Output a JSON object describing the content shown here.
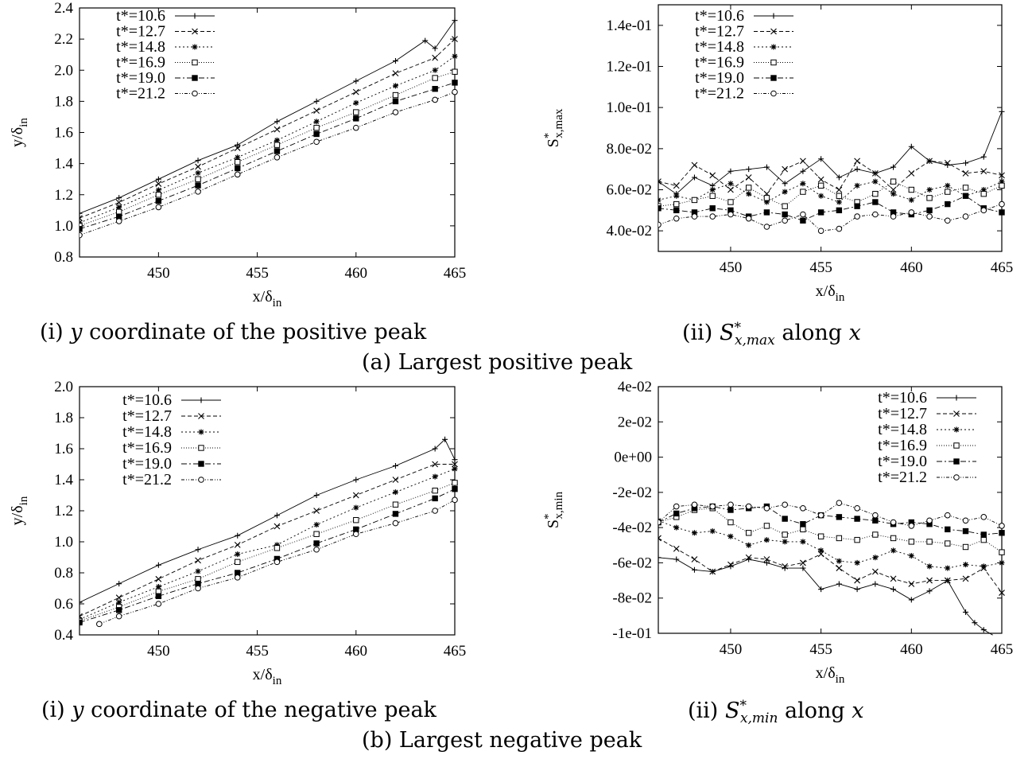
{
  "captions": {
    "a_i": {
      "prefix": "(i)",
      "var": "y",
      "text": "coordinate of the positive peak"
    },
    "a_ii": {
      "prefix": "(ii)",
      "sym": "S",
      "sup": "*",
      "sub": "x,max",
      "suffix": "along",
      "var": "x"
    },
    "a": "(a) Largest positive peak",
    "b_i": {
      "prefix": "(i)",
      "var": "y",
      "text": "coordinate of the negative peak"
    },
    "b_ii": {
      "prefix": "(ii)",
      "sym": "S",
      "sup": "*",
      "sub": "x,min",
      "suffix": "along",
      "var": "x"
    },
    "b": "(b) Largest negative peak"
  },
  "chart_data": [
    {
      "id": "a-i",
      "type": "line",
      "xlabel": "x/δ",
      "xlabel_sub": "in",
      "ylabel": "y/δ",
      "ylabel_sub": "in",
      "xlim": [
        446,
        465
      ],
      "ylim": [
        0.8,
        2.4
      ],
      "xticks": [
        450,
        455,
        460,
        465
      ],
      "xtick_labels": [
        "450",
        "455",
        "460",
        "465"
      ],
      "yticks": [
        0.8,
        1.0,
        1.2,
        1.4,
        1.6,
        1.8,
        2.0,
        2.2,
        2.4
      ],
      "ytick_labels": [
        "0.8",
        "1.0",
        "1.2",
        "1.4",
        "1.6",
        "1.8",
        "2.0",
        "2.2",
        "2.4"
      ],
      "legend_position": "top-left",
      "series": [
        {
          "name": "t*=10.6",
          "x": [
            446,
            448,
            450,
            452,
            454,
            456,
            458,
            460,
            462,
            463.5,
            464,
            465
          ],
          "y": [
            1.08,
            1.18,
            1.3,
            1.42,
            1.52,
            1.67,
            1.8,
            1.93,
            2.06,
            2.19,
            2.14,
            2.32
          ]
        },
        {
          "name": "t*=12.7",
          "x": [
            446,
            448,
            450,
            452,
            454,
            456,
            458,
            460,
            462,
            464,
            465
          ],
          "y": [
            1.05,
            1.15,
            1.27,
            1.38,
            1.5,
            1.62,
            1.74,
            1.86,
            1.98,
            2.08,
            2.2
          ]
        },
        {
          "name": "t*=14.8",
          "x": [
            446,
            448,
            450,
            452,
            454,
            456,
            458,
            460,
            462,
            464,
            465
          ],
          "y": [
            1.02,
            1.12,
            1.23,
            1.34,
            1.44,
            1.55,
            1.67,
            1.79,
            1.9,
            2.0,
            2.09
          ]
        },
        {
          "name": "t*=16.9",
          "x": [
            446,
            448,
            450,
            452,
            454,
            456,
            458,
            460,
            462,
            464,
            465
          ],
          "y": [
            1.0,
            1.09,
            1.2,
            1.3,
            1.41,
            1.52,
            1.63,
            1.73,
            1.84,
            1.95,
            1.99
          ]
        },
        {
          "name": "t*=19.0",
          "x": [
            446,
            448,
            450,
            452,
            454,
            456,
            458,
            460,
            462,
            464,
            465
          ],
          "y": [
            0.98,
            1.06,
            1.16,
            1.26,
            1.37,
            1.48,
            1.59,
            1.69,
            1.8,
            1.88,
            1.92
          ]
        },
        {
          "name": "t*=21.2",
          "x": [
            446,
            448,
            450,
            452,
            454,
            456,
            458,
            460,
            462,
            464,
            465
          ],
          "y": [
            0.94,
            1.03,
            1.12,
            1.22,
            1.33,
            1.44,
            1.54,
            1.63,
            1.73,
            1.81,
            1.86
          ]
        }
      ]
    },
    {
      "id": "a-ii",
      "type": "line",
      "xlabel": "x/δ",
      "xlabel_sub": "in",
      "ylabel": "S",
      "ylabel_sup": "*",
      "ylabel_sub": "x,max",
      "xlim": [
        446,
        465
      ],
      "ylim": [
        0.03,
        0.15
      ],
      "xticks": [
        450,
        455,
        460,
        465
      ],
      "xtick_labels": [
        "450",
        "455",
        "460",
        "465"
      ],
      "yticks": [
        0.04,
        0.06,
        0.08,
        0.1,
        0.12,
        0.14
      ],
      "ytick_labels": [
        "4.0e-02",
        "6.0e-02",
        "8.0e-02",
        "1.0e-01",
        "1.2e-01",
        "1.4e-01"
      ],
      "legend_position": "top-left",
      "series": [
        {
          "name": "t*=10.6",
          "x": [
            446,
            447,
            448,
            449,
            450,
            451,
            452,
            453,
            454,
            455,
            456,
            457,
            458,
            459,
            460,
            461,
            462,
            463,
            464,
            465
          ],
          "y": [
            0.064,
            0.058,
            0.066,
            0.062,
            0.069,
            0.07,
            0.071,
            0.063,
            0.069,
            0.075,
            0.066,
            0.07,
            0.068,
            0.071,
            0.081,
            0.074,
            0.072,
            0.073,
            0.076,
            0.098
          ]
        },
        {
          "name": "t*=12.7",
          "x": [
            446,
            447,
            448,
            449,
            450,
            451,
            452,
            453,
            454,
            455,
            456,
            457,
            458,
            459,
            460,
            461,
            462,
            463,
            464,
            465
          ],
          "y": [
            0.064,
            0.062,
            0.072,
            0.067,
            0.06,
            0.066,
            0.058,
            0.07,
            0.074,
            0.065,
            0.06,
            0.074,
            0.068,
            0.06,
            0.068,
            0.074,
            0.073,
            0.068,
            0.069,
            0.067
          ]
        },
        {
          "name": "t*=14.8",
          "x": [
            446,
            447,
            448,
            449,
            450,
            451,
            452,
            453,
            454,
            455,
            456,
            457,
            458,
            459,
            460,
            461,
            462,
            463,
            464,
            465
          ],
          "y": [
            0.055,
            0.057,
            0.055,
            0.06,
            0.063,
            0.058,
            0.054,
            0.059,
            0.063,
            0.057,
            0.054,
            0.062,
            0.064,
            0.058,
            0.055,
            0.06,
            0.062,
            0.057,
            0.06,
            0.064
          ]
        },
        {
          "name": "t*=16.9",
          "x": [
            446,
            447,
            448,
            449,
            450,
            451,
            452,
            453,
            454,
            455,
            456,
            457,
            458,
            459,
            460,
            461,
            462,
            463,
            464,
            465
          ],
          "y": [
            0.052,
            0.053,
            0.055,
            0.057,
            0.054,
            0.061,
            0.056,
            0.052,
            0.059,
            0.062,
            0.057,
            0.054,
            0.058,
            0.064,
            0.06,
            0.056,
            0.059,
            0.061,
            0.058,
            0.062
          ]
        },
        {
          "name": "t*=19.0",
          "x": [
            446,
            447,
            448,
            449,
            450,
            451,
            452,
            453,
            454,
            455,
            456,
            457,
            458,
            459,
            460,
            461,
            462,
            463,
            464,
            465
          ],
          "y": [
            0.051,
            0.05,
            0.049,
            0.051,
            0.05,
            0.047,
            0.049,
            0.048,
            0.045,
            0.049,
            0.05,
            0.052,
            0.054,
            0.049,
            0.048,
            0.05,
            0.053,
            0.057,
            0.051,
            0.049
          ]
        },
        {
          "name": "t*=21.2",
          "x": [
            446,
            447,
            448,
            449,
            450,
            451,
            452,
            453,
            454,
            455,
            456,
            457,
            458,
            459,
            460,
            461,
            462,
            463,
            464,
            465
          ],
          "y": [
            0.043,
            0.046,
            0.047,
            0.047,
            0.048,
            0.046,
            0.042,
            0.045,
            0.048,
            0.04,
            0.041,
            0.047,
            0.048,
            0.047,
            0.049,
            0.047,
            0.045,
            0.047,
            0.05,
            0.053
          ]
        }
      ]
    },
    {
      "id": "b-i",
      "type": "line",
      "xlabel": "x/δ",
      "xlabel_sub": "in",
      "ylabel": "y/δ",
      "ylabel_sub": "in",
      "xlim": [
        446,
        465
      ],
      "ylim": [
        0.4,
        2.0
      ],
      "xticks": [
        450,
        455,
        460,
        465
      ],
      "xtick_labels": [
        "450",
        "455",
        "460",
        "465"
      ],
      "yticks": [
        0.4,
        0.6,
        0.8,
        1.0,
        1.2,
        1.4,
        1.6,
        1.8,
        2.0
      ],
      "ytick_labels": [
        "0.4",
        "0.6",
        "0.8",
        "1.0",
        "1.2",
        "1.4",
        "1.6",
        "1.8",
        "2.0"
      ],
      "legend_position": "top-left",
      "series": [
        {
          "name": "t*=10.6",
          "x": [
            446,
            448,
            450,
            452,
            454,
            456,
            458,
            460,
            462,
            464,
            464.5,
            465
          ],
          "y": [
            0.61,
            0.73,
            0.85,
            0.95,
            1.04,
            1.17,
            1.3,
            1.4,
            1.49,
            1.6,
            1.66,
            1.53
          ]
        },
        {
          "name": "t*=12.7",
          "x": [
            446,
            448,
            450,
            452,
            454,
            456,
            458,
            460,
            462,
            464,
            465
          ],
          "y": [
            0.52,
            0.64,
            0.76,
            0.88,
            0.98,
            1.1,
            1.2,
            1.3,
            1.4,
            1.5,
            1.5
          ]
        },
        {
          "name": "t*=14.8",
          "x": [
            446,
            448,
            450,
            452,
            454,
            456,
            458,
            460,
            462,
            464,
            465
          ],
          "y": [
            0.5,
            0.61,
            0.71,
            0.81,
            0.92,
            0.98,
            1.11,
            1.22,
            1.32,
            1.42,
            1.47
          ]
        },
        {
          "name": "t*=16.9",
          "x": [
            446,
            448,
            450,
            452,
            454,
            456,
            458,
            460,
            462,
            464,
            465
          ],
          "y": [
            0.49,
            0.58,
            0.68,
            0.76,
            0.87,
            0.96,
            1.05,
            1.14,
            1.24,
            1.33,
            1.38
          ]
        },
        {
          "name": "t*=19.0",
          "x": [
            446,
            448,
            450,
            452,
            454,
            456,
            458,
            460,
            462,
            464,
            465
          ],
          "y": [
            0.48,
            0.56,
            0.65,
            0.73,
            0.8,
            0.89,
            0.99,
            1.08,
            1.18,
            1.28,
            1.34
          ]
        },
        {
          "name": "t*=21.2",
          "x": [
            447,
            448,
            450,
            452,
            454,
            456,
            458,
            460,
            462,
            464,
            465
          ],
          "y": [
            0.47,
            0.52,
            0.6,
            0.7,
            0.77,
            0.87,
            0.95,
            1.05,
            1.12,
            1.2,
            1.27
          ]
        }
      ]
    },
    {
      "id": "b-ii",
      "type": "line",
      "xlabel": "x/δ",
      "xlabel_sub": "in",
      "ylabel": "S",
      "ylabel_sup": "*",
      "ylabel_sub": "x,min",
      "xlim": [
        446,
        465
      ],
      "ylim": [
        -0.1,
        0.04
      ],
      "xticks": [
        450,
        455,
        460,
        465
      ],
      "xtick_labels": [
        "450",
        "455",
        "460",
        "465"
      ],
      "yticks": [
        -0.1,
        -0.08,
        -0.06,
        -0.04,
        -0.02,
        0.0,
        0.02,
        0.04
      ],
      "ytick_labels": [
        "-1e-01",
        "-8e-02",
        "-6e-02",
        "-4e-02",
        "-2e-02",
        "0e+00",
        "2e-02",
        "4e-02"
      ],
      "legend_position": "top-right",
      "series": [
        {
          "name": "t*=10.6",
          "x": [
            446,
            447,
            448,
            449,
            450,
            451,
            452,
            453,
            454,
            455,
            456,
            457,
            458,
            459,
            460,
            461,
            462,
            463,
            463.5,
            464,
            464.5
          ],
          "y": [
            -0.057,
            -0.058,
            -0.064,
            -0.065,
            -0.062,
            -0.058,
            -0.06,
            -0.063,
            -0.063,
            -0.075,
            -0.072,
            -0.075,
            -0.072,
            -0.075,
            -0.081,
            -0.076,
            -0.07,
            -0.088,
            -0.094,
            -0.098,
            -0.101
          ]
        },
        {
          "name": "t*=12.7",
          "x": [
            446,
            447,
            448,
            449,
            450,
            451,
            452,
            453,
            454,
            455,
            456,
            457,
            458,
            459,
            460,
            461,
            462,
            463,
            464,
            465
          ],
          "y": [
            -0.046,
            -0.052,
            -0.058,
            -0.065,
            -0.061,
            -0.057,
            -0.058,
            -0.062,
            -0.06,
            -0.055,
            -0.063,
            -0.07,
            -0.065,
            -0.069,
            -0.072,
            -0.07,
            -0.07,
            -0.069,
            -0.063,
            -0.077
          ]
        },
        {
          "name": "t*=14.8",
          "x": [
            446,
            447,
            448,
            449,
            450,
            451,
            452,
            453,
            454,
            455,
            456,
            457,
            458,
            459,
            460,
            461,
            462,
            463,
            464,
            465
          ],
          "y": [
            -0.036,
            -0.04,
            -0.043,
            -0.042,
            -0.045,
            -0.05,
            -0.047,
            -0.048,
            -0.048,
            -0.053,
            -0.059,
            -0.06,
            -0.057,
            -0.053,
            -0.056,
            -0.062,
            -0.063,
            -0.061,
            -0.062,
            -0.06
          ]
        },
        {
          "name": "t*=16.9",
          "x": [
            446,
            447,
            448,
            449,
            450,
            451,
            452,
            453,
            454,
            455,
            456,
            457,
            458,
            459,
            460,
            461,
            462,
            463,
            464,
            465
          ],
          "y": [
            -0.037,
            -0.034,
            -0.03,
            -0.029,
            -0.037,
            -0.043,
            -0.039,
            -0.044,
            -0.041,
            -0.045,
            -0.046,
            -0.047,
            -0.044,
            -0.046,
            -0.048,
            -0.048,
            -0.049,
            -0.051,
            -0.047,
            -0.054
          ]
        },
        {
          "name": "t*=19.0",
          "x": [
            446,
            447,
            448,
            449,
            450,
            451,
            452,
            453,
            454,
            455,
            456,
            457,
            458,
            459,
            460,
            461,
            462,
            463,
            464,
            465
          ],
          "y": [
            -0.037,
            -0.032,
            -0.029,
            -0.028,
            -0.03,
            -0.029,
            -0.028,
            -0.035,
            -0.038,
            -0.033,
            -0.034,
            -0.035,
            -0.036,
            -0.038,
            -0.037,
            -0.038,
            -0.041,
            -0.042,
            -0.044,
            -0.043
          ]
        },
        {
          "name": "t*=21.2",
          "x": [
            446,
            447,
            448,
            449,
            450,
            451,
            452,
            453,
            454,
            455,
            456,
            457,
            458,
            459,
            460,
            461,
            462,
            463,
            464,
            465
          ],
          "y": [
            -0.037,
            -0.028,
            -0.027,
            -0.028,
            -0.027,
            -0.028,
            -0.029,
            -0.027,
            -0.029,
            -0.033,
            -0.026,
            -0.029,
            -0.033,
            -0.037,
            -0.039,
            -0.036,
            -0.033,
            -0.036,
            -0.034,
            -0.039
          ]
        }
      ]
    }
  ]
}
